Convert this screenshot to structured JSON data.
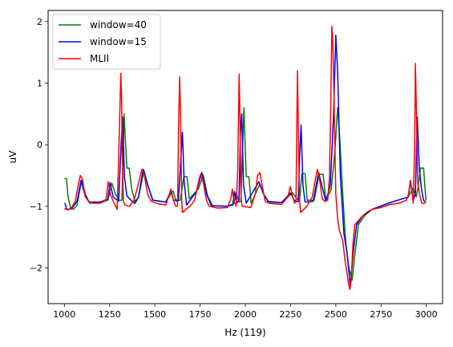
{
  "chart_data": {
    "type": "line",
    "title": "",
    "xlabel": "Hz (119)",
    "ylabel": "uV",
    "xlim": [
      910,
      3090
    ],
    "ylim": [
      -2.58,
      2.18
    ],
    "xticks": [
      1000,
      1250,
      1500,
      1750,
      2000,
      2250,
      2500,
      2750,
      3000
    ],
    "yticks": [
      -2,
      -1,
      0,
      1,
      2
    ],
    "ytick_labels": [
      "−2",
      "−1",
      "0",
      "1",
      "2"
    ],
    "grid": false,
    "legend": {
      "position": "top-left"
    },
    "series": [
      {
        "name": "window=40",
        "color": "#008000",
        "points": [
          [
            1000,
            -0.55
          ],
          [
            1012,
            -0.55
          ],
          [
            1020,
            -0.85
          ],
          [
            1035,
            -1.03
          ],
          [
            1050,
            -1.05
          ],
          [
            1070,
            -0.98
          ],
          [
            1095,
            -0.58
          ],
          [
            1118,
            -0.82
          ],
          [
            1140,
            -0.95
          ],
          [
            1200,
            -0.94
          ],
          [
            1240,
            -0.9
          ],
          [
            1262,
            -0.62
          ],
          [
            1282,
            -0.8
          ],
          [
            1300,
            -0.9
          ],
          [
            1318,
            -0.9
          ],
          [
            1330,
            0.5
          ],
          [
            1345,
            -0.38
          ],
          [
            1358,
            -0.38
          ],
          [
            1372,
            -0.72
          ],
          [
            1392,
            -0.95
          ],
          [
            1410,
            -0.85
          ],
          [
            1440,
            -0.42
          ],
          [
            1465,
            -0.7
          ],
          [
            1490,
            -0.9
          ],
          [
            1560,
            -0.93
          ],
          [
            1600,
            -0.75
          ],
          [
            1618,
            -0.92
          ],
          [
            1640,
            -0.9
          ],
          [
            1660,
            -0.52
          ],
          [
            1678,
            -0.52
          ],
          [
            1690,
            -0.88
          ],
          [
            1740,
            -0.72
          ],
          [
            1768,
            -0.5
          ],
          [
            1792,
            -0.84
          ],
          [
            1820,
            -0.99
          ],
          [
            1900,
            -1.0
          ],
          [
            1935,
            -0.96
          ],
          [
            1950,
            -0.78
          ],
          [
            1965,
            -0.93
          ],
          [
            1975,
            -0.92
          ],
          [
            1992,
            0.6
          ],
          [
            2005,
            -0.52
          ],
          [
            2020,
            -0.52
          ],
          [
            2032,
            -0.95
          ],
          [
            2080,
            -0.64
          ],
          [
            2105,
            -0.82
          ],
          [
            2130,
            -0.93
          ],
          [
            2200,
            -0.94
          ],
          [
            2262,
            -0.78
          ],
          [
            2285,
            -0.88
          ],
          [
            2300,
            -0.9
          ],
          [
            2312,
            -0.47
          ],
          [
            2330,
            -0.47
          ],
          [
            2342,
            -0.9
          ],
          [
            2380,
            -0.9
          ],
          [
            2408,
            -0.48
          ],
          [
            2430,
            -0.48
          ],
          [
            2445,
            -0.9
          ],
          [
            2475,
            -0.72
          ],
          [
            2495,
            -0.1
          ],
          [
            2510,
            0.6
          ],
          [
            2522,
            0.1
          ],
          [
            2540,
            -0.9
          ],
          [
            2555,
            -1.6
          ],
          [
            2572,
            -2.0
          ],
          [
            2590,
            -2.2
          ],
          [
            2605,
            -1.8
          ],
          [
            2625,
            -1.3
          ],
          [
            2660,
            -1.15
          ],
          [
            2700,
            -1.05
          ],
          [
            2800,
            -0.94
          ],
          [
            2900,
            -0.85
          ],
          [
            2928,
            -0.7
          ],
          [
            2945,
            -0.85
          ],
          [
            2958,
            -0.62
          ],
          [
            2968,
            -0.38
          ],
          [
            2985,
            -0.38
          ],
          [
            2998,
            -0.9
          ]
        ]
      },
      {
        "name": "window=15",
        "color": "#0000ff",
        "points": [
          [
            1000,
            -0.95
          ],
          [
            1005,
            -0.96
          ],
          [
            1012,
            -1.05
          ],
          [
            1040,
            -1.04
          ],
          [
            1070,
            -0.92
          ],
          [
            1092,
            -0.58
          ],
          [
            1110,
            -0.78
          ],
          [
            1135,
            -0.93
          ],
          [
            1200,
            -0.93
          ],
          [
            1240,
            -0.88
          ],
          [
            1252,
            -0.62
          ],
          [
            1270,
            -0.85
          ],
          [
            1300,
            -0.92
          ],
          [
            1313,
            0.0
          ],
          [
            1322,
            0.45
          ],
          [
            1332,
            -0.52
          ],
          [
            1345,
            -0.83
          ],
          [
            1385,
            -0.95
          ],
          [
            1410,
            -0.85
          ],
          [
            1435,
            -0.4
          ],
          [
            1460,
            -0.65
          ],
          [
            1488,
            -0.9
          ],
          [
            1560,
            -0.93
          ],
          [
            1590,
            -0.75
          ],
          [
            1602,
            -0.9
          ],
          [
            1630,
            -0.9
          ],
          [
            1642,
            -0.3
          ],
          [
            1652,
            0.2
          ],
          [
            1662,
            -0.6
          ],
          [
            1675,
            -0.98
          ],
          [
            1730,
            -0.76
          ],
          [
            1760,
            -0.45
          ],
          [
            1785,
            -0.8
          ],
          [
            1812,
            -0.99
          ],
          [
            1900,
            -1.0
          ],
          [
            1930,
            -0.98
          ],
          [
            1940,
            -0.76
          ],
          [
            1952,
            -0.95
          ],
          [
            1965,
            -0.9
          ],
          [
            1973,
            0.2
          ],
          [
            1980,
            0.5
          ],
          [
            1990,
            -0.65
          ],
          [
            2005,
            -0.95
          ],
          [
            2075,
            -0.6
          ],
          [
            2100,
            -0.8
          ],
          [
            2125,
            -0.92
          ],
          [
            2200,
            -0.94
          ],
          [
            2250,
            -0.78
          ],
          [
            2270,
            -0.9
          ],
          [
            2292,
            -0.93
          ],
          [
            2300,
            -0.2
          ],
          [
            2308,
            0.32
          ],
          [
            2318,
            -0.65
          ],
          [
            2330,
            -0.93
          ],
          [
            2375,
            -0.92
          ],
          [
            2405,
            -0.45
          ],
          [
            2428,
            -0.72
          ],
          [
            2445,
            -0.92
          ],
          [
            2470,
            -0.65
          ],
          [
            2488,
            0.5
          ],
          [
            2500,
            1.78
          ],
          [
            2510,
            1.2
          ],
          [
            2525,
            -0.5
          ],
          [
            2545,
            -1.45
          ],
          [
            2562,
            -1.75
          ],
          [
            2580,
            -2.3
          ],
          [
            2598,
            -1.7
          ],
          [
            2615,
            -1.3
          ],
          [
            2650,
            -1.15
          ],
          [
            2700,
            -1.05
          ],
          [
            2800,
            -0.94
          ],
          [
            2900,
            -0.85
          ],
          [
            2912,
            -0.58
          ],
          [
            2928,
            -0.9
          ],
          [
            2940,
            -0.8
          ],
          [
            2950,
            0.45
          ],
          [
            2962,
            -0.4
          ],
          [
            2975,
            -0.75
          ],
          [
            2985,
            -0.9
          ],
          [
            2998,
            -0.93
          ]
        ]
      },
      {
        "name": "MLII",
        "color": "#ff0000",
        "points": [
          [
            1000,
            -1.05
          ],
          [
            1010,
            -1.03
          ],
          [
            1020,
            -1.06
          ],
          [
            1040,
            -1.02
          ],
          [
            1060,
            -0.92
          ],
          [
            1075,
            -0.68
          ],
          [
            1088,
            -0.5
          ],
          [
            1100,
            -0.56
          ],
          [
            1115,
            -0.85
          ],
          [
            1135,
            -0.92
          ],
          [
            1160,
            -0.95
          ],
          [
            1200,
            -0.95
          ],
          [
            1230,
            -0.9
          ],
          [
            1242,
            -0.6
          ],
          [
            1255,
            -0.82
          ],
          [
            1275,
            -0.95
          ],
          [
            1292,
            -1.05
          ],
          [
            1300,
            -0.2
          ],
          [
            1307,
            0.6
          ],
          [
            1312,
            1.16
          ],
          [
            1316,
            0.8
          ],
          [
            1320,
            -0.2
          ],
          [
            1326,
            -0.92
          ],
          [
            1335,
            -0.98
          ],
          [
            1360,
            -1.0
          ],
          [
            1385,
            -0.9
          ],
          [
            1412,
            -0.6
          ],
          [
            1428,
            -0.4
          ],
          [
            1442,
            -0.5
          ],
          [
            1460,
            -0.8
          ],
          [
            1480,
            -0.92
          ],
          [
            1520,
            -0.96
          ],
          [
            1560,
            -0.98
          ],
          [
            1578,
            -0.82
          ],
          [
            1588,
            -0.72
          ],
          [
            1600,
            -0.88
          ],
          [
            1615,
            -1.0
          ],
          [
            1625,
            -1.0
          ],
          [
            1632,
            0.4
          ],
          [
            1637,
            1.1
          ],
          [
            1642,
            0.5
          ],
          [
            1648,
            -0.9
          ],
          [
            1652,
            -1.1
          ],
          [
            1700,
            -0.98
          ],
          [
            1720,
            -0.9
          ],
          [
            1740,
            -0.62
          ],
          [
            1752,
            -0.48
          ],
          [
            1765,
            -0.58
          ],
          [
            1785,
            -0.9
          ],
          [
            1800,
            -1.0
          ],
          [
            1850,
            -1.03
          ],
          [
            1900,
            -1.02
          ],
          [
            1920,
            -0.88
          ],
          [
            1928,
            -0.72
          ],
          [
            1936,
            -0.9
          ],
          [
            1950,
            -1.0
          ],
          [
            1958,
            -0.4
          ],
          [
            1962,
            0.4
          ],
          [
            1966,
            1.15
          ],
          [
            1970,
            0.5
          ],
          [
            1976,
            -0.8
          ],
          [
            1982,
            -1.0
          ],
          [
            2030,
            -1.02
          ],
          [
            2055,
            -0.8
          ],
          [
            2068,
            -0.5
          ],
          [
            2080,
            -0.45
          ],
          [
            2092,
            -0.65
          ],
          [
            2110,
            -0.92
          ],
          [
            2130,
            -0.95
          ],
          [
            2200,
            -0.97
          ],
          [
            2235,
            -0.85
          ],
          [
            2248,
            -0.68
          ],
          [
            2262,
            -0.85
          ],
          [
            2272,
            -0.95
          ],
          [
            2280,
            -0.92
          ],
          [
            2284,
            0.2
          ],
          [
            2288,
            1.2
          ],
          [
            2292,
            0.5
          ],
          [
            2298,
            -0.8
          ],
          [
            2305,
            -1.1
          ],
          [
            2340,
            -1.0
          ],
          [
            2370,
            -0.85
          ],
          [
            2388,
            -0.55
          ],
          [
            2398,
            -0.4
          ],
          [
            2410,
            -0.55
          ],
          [
            2425,
            -0.88
          ],
          [
            2440,
            -0.92
          ],
          [
            2455,
            -0.9
          ],
          [
            2465,
            -0.55
          ],
          [
            2472,
            0.6
          ],
          [
            2478,
            1.92
          ],
          [
            2483,
            1.7
          ],
          [
            2490,
            0.8
          ],
          [
            2500,
            -0.8
          ],
          [
            2510,
            -1.2
          ],
          [
            2520,
            -1.4
          ],
          [
            2538,
            -1.55
          ],
          [
            2552,
            -1.9
          ],
          [
            2560,
            -2.05
          ],
          [
            2570,
            -2.25
          ],
          [
            2578,
            -2.35
          ],
          [
            2585,
            -2.2
          ],
          [
            2595,
            -1.6
          ],
          [
            2605,
            -1.3
          ],
          [
            2620,
            -1.25
          ],
          [
            2640,
            -1.18
          ],
          [
            2670,
            -1.1
          ],
          [
            2700,
            -1.05
          ],
          [
            2750,
            -1.02
          ],
          [
            2800,
            -0.97
          ],
          [
            2850,
            -0.95
          ],
          [
            2890,
            -0.9
          ],
          [
            2905,
            -0.78
          ],
          [
            2912,
            -0.58
          ],
          [
            2920,
            -0.72
          ],
          [
            2928,
            -0.95
          ],
          [
            2936,
            0.0
          ],
          [
            2940,
            1.32
          ],
          [
            2945,
            0.6
          ],
          [
            2952,
            -0.6
          ],
          [
            2962,
            -0.8
          ],
          [
            2975,
            -0.95
          ],
          [
            2990,
            -0.95
          ],
          [
            2998,
            -0.93
          ]
        ]
      }
    ]
  }
}
